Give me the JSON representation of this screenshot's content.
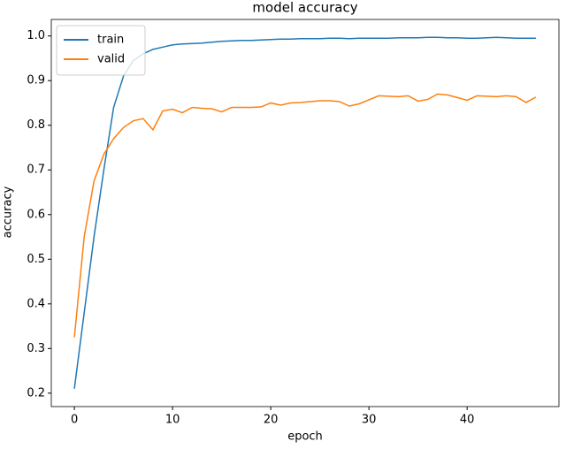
{
  "chart_data": {
    "type": "line",
    "title": "model accuracy",
    "x_label": "epoch",
    "y_label": "accuracy",
    "x": [
      0,
      1,
      2,
      3,
      4,
      5,
      6,
      7,
      8,
      9,
      10,
      11,
      12,
      13,
      14,
      15,
      16,
      17,
      18,
      19,
      20,
      21,
      22,
      23,
      24,
      25,
      26,
      27,
      28,
      29,
      30,
      31,
      32,
      33,
      34,
      35,
      36,
      37,
      38,
      39,
      40,
      41,
      42,
      43,
      44,
      45,
      46,
      47
    ],
    "series": [
      {
        "name": "train",
        "color": "#1f77b4",
        "values": [
          0.21,
          0.38,
          0.55,
          0.7,
          0.84,
          0.91,
          0.945,
          0.96,
          0.97,
          0.975,
          0.98,
          0.982,
          0.983,
          0.984,
          0.986,
          0.988,
          0.989,
          0.99,
          0.99,
          0.991,
          0.992,
          0.993,
          0.993,
          0.994,
          0.994,
          0.994,
          0.995,
          0.995,
          0.994,
          0.995,
          0.995,
          0.995,
          0.995,
          0.996,
          0.996,
          0.996,
          0.997,
          0.997,
          0.996,
          0.996,
          0.995,
          0.995,
          0.996,
          0.997,
          0.996,
          0.995,
          0.995,
          0.995
        ]
      },
      {
        "name": "valid",
        "color": "#ff7f0e",
        "values": [
          0.325,
          0.55,
          0.675,
          0.735,
          0.77,
          0.795,
          0.81,
          0.815,
          0.79,
          0.832,
          0.836,
          0.828,
          0.84,
          0.838,
          0.837,
          0.83,
          0.84,
          0.84,
          0.84,
          0.841,
          0.85,
          0.845,
          0.85,
          0.851,
          0.853,
          0.855,
          0.855,
          0.853,
          0.843,
          0.848,
          0.857,
          0.866,
          0.865,
          0.864,
          0.866,
          0.854,
          0.858,
          0.87,
          0.868,
          0.862,
          0.856,
          0.866,
          0.865,
          0.864,
          0.866,
          0.864,
          0.851,
          0.863
        ]
      }
    ],
    "xlim": [
      -2.35,
      49.35
    ],
    "ylim": [
      0.17,
      1.037
    ],
    "xticks": [
      0,
      10,
      20,
      30,
      40
    ],
    "yticks": [
      0.2,
      0.3,
      0.4,
      0.5,
      0.6,
      0.7,
      0.8,
      0.9,
      {
        "value": 1,
        "label": "1.0"
      }
    ],
    "legend": "upper left"
  }
}
